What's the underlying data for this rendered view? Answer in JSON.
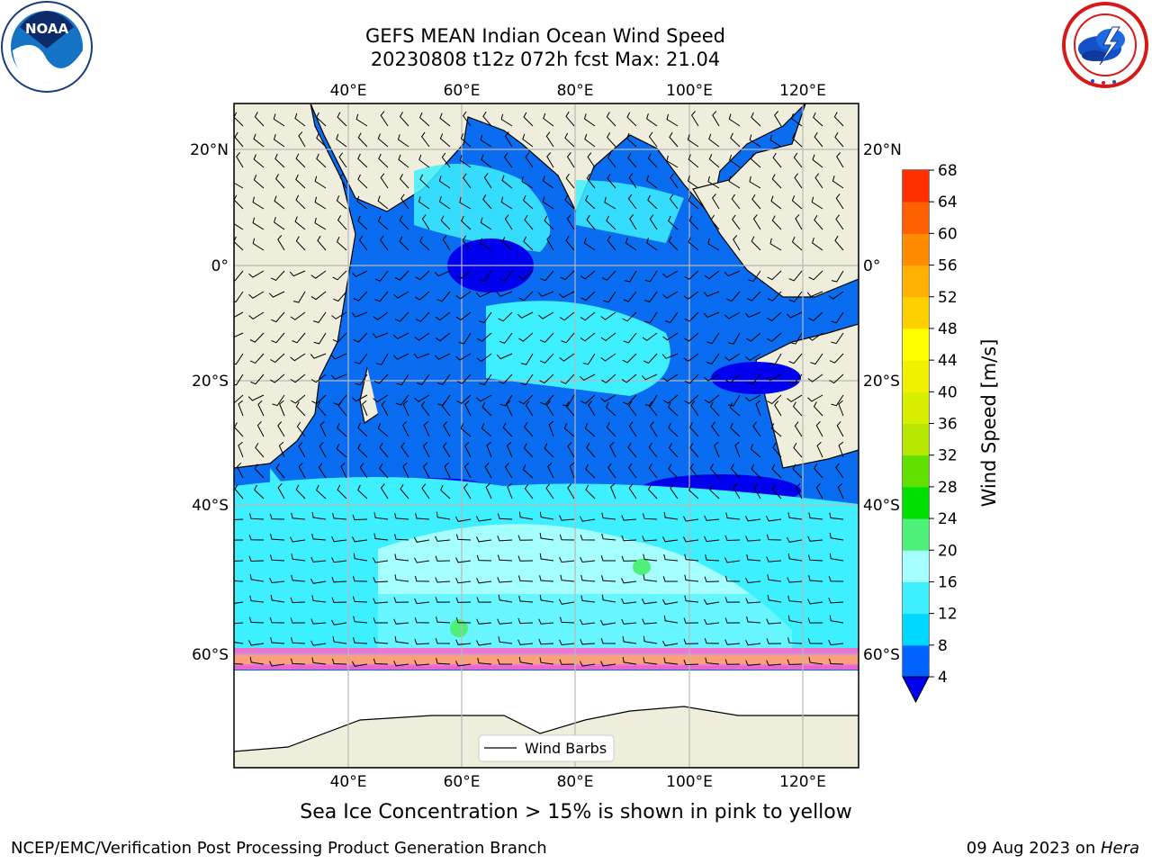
{
  "header": {
    "title_line1": "GEFS MEAN Indian Ocean Wind Speed",
    "title_line2": "20230808 t12z 072h fcst   Max: 21.04"
  },
  "logos": {
    "left": "noara-logo",
    "right": "nws-logo",
    "left_text": "NOAA"
  },
  "map": {
    "lon_ticks": [
      "40°E",
      "60°E",
      "80°E",
      "100°E",
      "120°E"
    ],
    "lat_ticks_left": [
      "20°N",
      "0°",
      "20°S",
      "40°S",
      "60°S"
    ],
    "lat_ticks_right": [
      "20°N",
      "0°",
      "20°S",
      "40°S",
      "60°S"
    ],
    "legend_label": "Wind Barbs",
    "colors": {
      "land": "#efeedd",
      "ice": "#ffffff"
    }
  },
  "colorbar": {
    "label": "Wind Speed [m/s]",
    "ticks": [
      "4",
      "8",
      "12",
      "16",
      "20",
      "24",
      "28",
      "32",
      "36",
      "40",
      "44",
      "48",
      "52",
      "56",
      "60",
      "64",
      "68"
    ],
    "colors": [
      "#0062ff",
      "#00d8ff",
      "#3ef0ff",
      "#a6ffff",
      "#4ef07a",
      "#00e000",
      "#60e000",
      "#b4e600",
      "#d8f000",
      "#f0f000",
      "#ffff00",
      "#ffd000",
      "#ffb000",
      "#ff8c00",
      "#ff6000",
      "#ff3000",
      "#ff0000"
    ],
    "under_color": "#0000ee"
  },
  "caption": "Sea Ice Concentration > 15% is shown in pink to yellow",
  "footer": {
    "left": "NCEP/EMC/Verification Post Processing Product Generation Branch",
    "date": "09 Aug 2023 on ",
    "machine": "Hera"
  }
}
